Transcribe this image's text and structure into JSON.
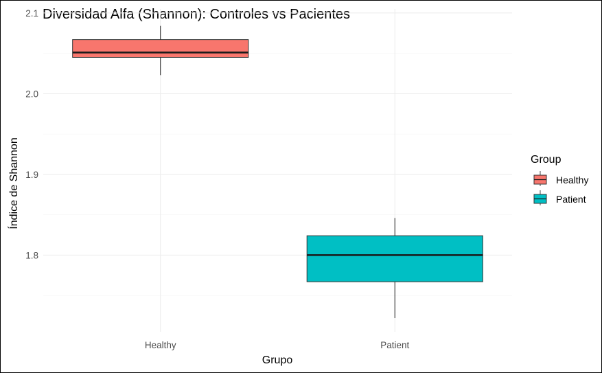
{
  "chart_data": {
    "type": "boxplot",
    "title": "Diversidad Alfa (Shannon): Controles vs Pacientes",
    "xlabel": "Grupo",
    "ylabel": "Índice de Shannon",
    "ylim": [
      1.705,
      2.105
    ],
    "y_ticks": [
      1.8,
      1.9,
      2.0,
      2.1
    ],
    "y_tick_labels": [
      "1.8",
      "1.9",
      "2.0",
      "2.1"
    ],
    "y_minor_ticks": [
      1.75,
      1.85,
      1.95,
      2.05
    ],
    "grid": true,
    "legend": {
      "title": "Group",
      "position": "right"
    },
    "categories": [
      "Healthy",
      "Patient"
    ],
    "series": [
      {
        "name": "Healthy",
        "color": "#F8766D",
        "min": 2.023,
        "q1": 2.045,
        "median": 2.051,
        "q3": 2.067,
        "max": 2.084
      },
      {
        "name": "Patient",
        "color": "#00BFC4",
        "min": 1.722,
        "q1": 1.767,
        "median": 1.8,
        "q3": 1.824,
        "max": 1.846
      }
    ]
  }
}
